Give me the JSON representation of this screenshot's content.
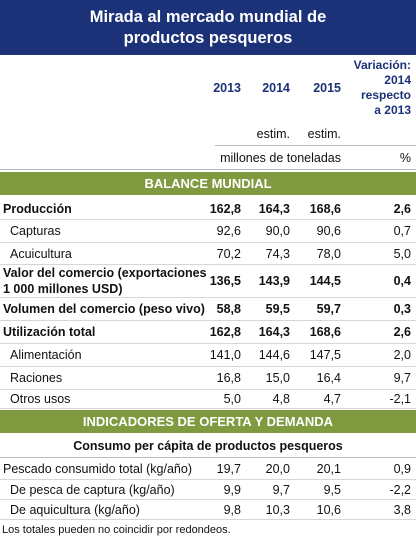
{
  "header": {
    "title": "Mirada al mercado mundial de\nproductos pesqueros"
  },
  "columns": {
    "years": [
      "2013",
      "2014",
      "2015"
    ],
    "variation": "Variación:\n2014\nrespecto\na 2013"
  },
  "estimates": [
    "estim.",
    "estim."
  ],
  "units": [
    "millones de toneladas",
    "%"
  ],
  "balance": {
    "title": "BALANCE MUNDIAL",
    "rows": [
      {
        "label": "Producción",
        "values": [
          "162,8",
          "164,3",
          "168,6",
          "2,6"
        ]
      },
      {
        "label": "Capturas",
        "values": [
          "92,6",
          "90,0",
          "90,6",
          "0,7"
        ]
      },
      {
        "label": "Acuicultura",
        "values": [
          "70,2",
          "74,3",
          "78,0",
          "5,0"
        ]
      },
      {
        "label": "Valor del comercio (exportaciones\n1 000 millones USD)",
        "values": [
          "136,5",
          "143,9",
          "144,5",
          "0,4"
        ]
      },
      {
        "label": "Volumen del comercio (peso vivo)",
        "values": [
          "58,8",
          "59,5",
          "59,7",
          "0,3"
        ]
      },
      {
        "label": "Utilización total",
        "values": [
          "162,8",
          "164,3",
          "168,6",
          "2,6"
        ]
      },
      {
        "label": "Alimentación",
        "values": [
          "141,0",
          "144,6",
          "147,5",
          "2,0"
        ]
      },
      {
        "label": "Raciones",
        "values": [
          "16,8",
          "15,0",
          "16,4",
          "9,7"
        ]
      },
      {
        "label": "Otros usos",
        "values": [
          "5,0",
          "4,8",
          "4,7",
          "-2,1"
        ]
      }
    ]
  },
  "indicators": {
    "title": "INDICADORES  DE OFERTA Y DEMANDA",
    "subtitle": "Consumo per cápita de productos pesqueros",
    "rows": [
      {
        "label": "Pescado consumido total (kg/año)",
        "values": [
          "19,7",
          "20,0",
          "20,1",
          "0,9"
        ]
      },
      {
        "label": "De pesca de captura (kg/año)",
        "values": [
          "9,9",
          "9,7",
          "9,5",
          "-2,2"
        ]
      },
      {
        "label": "De aquicultura (kg/año)",
        "values": [
          "9,8",
          "10,3",
          "10,6",
          "3,8"
        ]
      }
    ]
  },
  "footnote": "Los totales pueden no coincidir por redondeos."
}
